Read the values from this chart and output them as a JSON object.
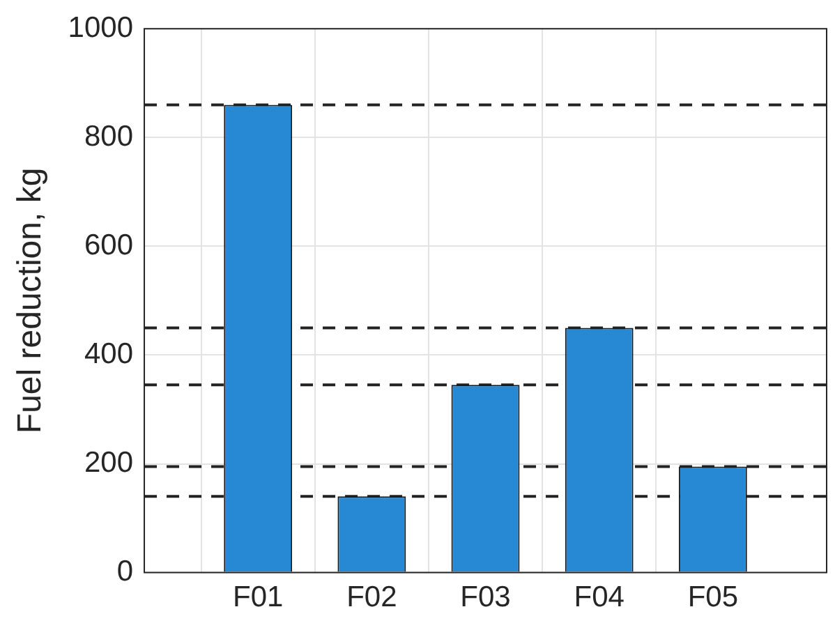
{
  "chart_data": {
    "type": "bar",
    "ylabel": "Fuel reduction, kg",
    "categories": [
      "F01",
      "F02",
      "F03",
      "F04",
      "F05"
    ],
    "values": [
      860,
      140,
      345,
      450,
      195
    ],
    "color": "#2789d3",
    "ylim": [
      0,
      1000
    ],
    "yticks": [
      0,
      200,
      400,
      600,
      800,
      1000
    ],
    "grid": true,
    "ref_lines": [
      {
        "axis": "y",
        "value": 860,
        "color": "#222222",
        "line_style": "dashed"
      },
      {
        "axis": "y",
        "value": 140,
        "color": "#222222",
        "line_style": "dashed"
      },
      {
        "axis": "y",
        "value": 345,
        "color": "#222222",
        "line_style": "dashed"
      },
      {
        "axis": "y",
        "value": 450,
        "color": "#222222",
        "line_style": "dashed"
      },
      {
        "axis": "y",
        "value": 195,
        "color": "#222222",
        "line_style": "dashed"
      }
    ]
  }
}
